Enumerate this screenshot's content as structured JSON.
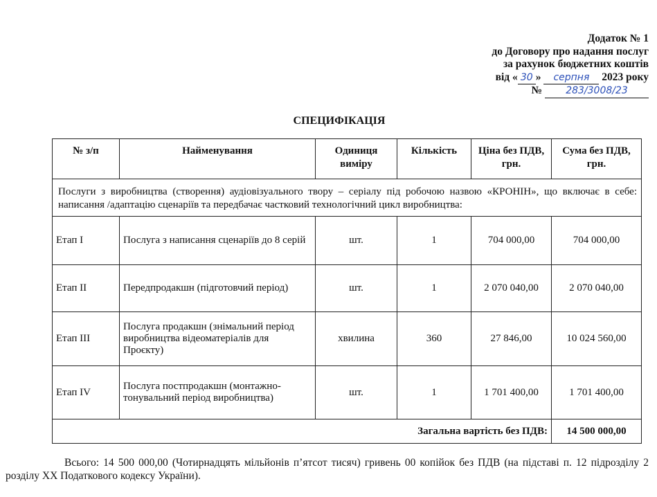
{
  "header": {
    "line1": "Додаток № 1",
    "line2": "до Договору про надання послуг",
    "line3": "за рахунок бюджетних коштів",
    "date_prefix": "від «",
    "day": "30",
    "date_mid": "»",
    "month": "серпня",
    "year_suffix": "2023 року",
    "number_prefix": "№",
    "number": "283/3008/23"
  },
  "title": "СПЕЦИФІКАЦІЯ",
  "table": {
    "columns": [
      "№ з/п",
      "Найменування",
      "Одиниця виміру",
      "Кількість",
      "Ціна без ПДВ, грн.",
      "Сума без ПДВ, грн."
    ],
    "description": "Послуги з виробництва (створення) аудіовізуального твору – серіалу під робочою назвою «КРОНІН», що включає в себе: написання /адаптацію сценаріїв та передбачає частковий технологічний цикл виробництва:",
    "rows": [
      {
        "stage": "Етап І",
        "name": "Послуга з написання сценаріїв до 8 серій",
        "unit": "шт.",
        "qty": "1",
        "price": "704 000,00",
        "sum": "704 000,00"
      },
      {
        "stage": "Етап ІІ",
        "name": "Передпродакшн (підготовчий період)",
        "unit": "шт.",
        "qty": "1",
        "price": "2 070 040,00",
        "sum": "2 070 040,00"
      },
      {
        "stage": "Етап ІІІ",
        "name": "Послуга продакшн (знімальний період виробництва відеоматеріалів для Проєкту)",
        "unit": "хвилина",
        "qty": "360",
        "price": "27 846,00",
        "sum": "10 024 560,00"
      },
      {
        "stage": "Етап IV",
        "name": "Послуга постпродакшн (монтажно-тонувальний період виробництва)",
        "unit": "шт.",
        "qty": "1",
        "price": "1 701 400,00",
        "sum": "1 701 400,00"
      }
    ],
    "total_label": "Загальна вартість без ПДВ:",
    "total_value": "14 500 000,00"
  },
  "footer": "Всього: 14 500 000,00 (Чотирнадцять мільйонів п’ятсот тисяч) гривень 00 копійок без ПДВ (на підставі п. 12 підрозділу 2 розділу XX Податкового кодексу України)."
}
